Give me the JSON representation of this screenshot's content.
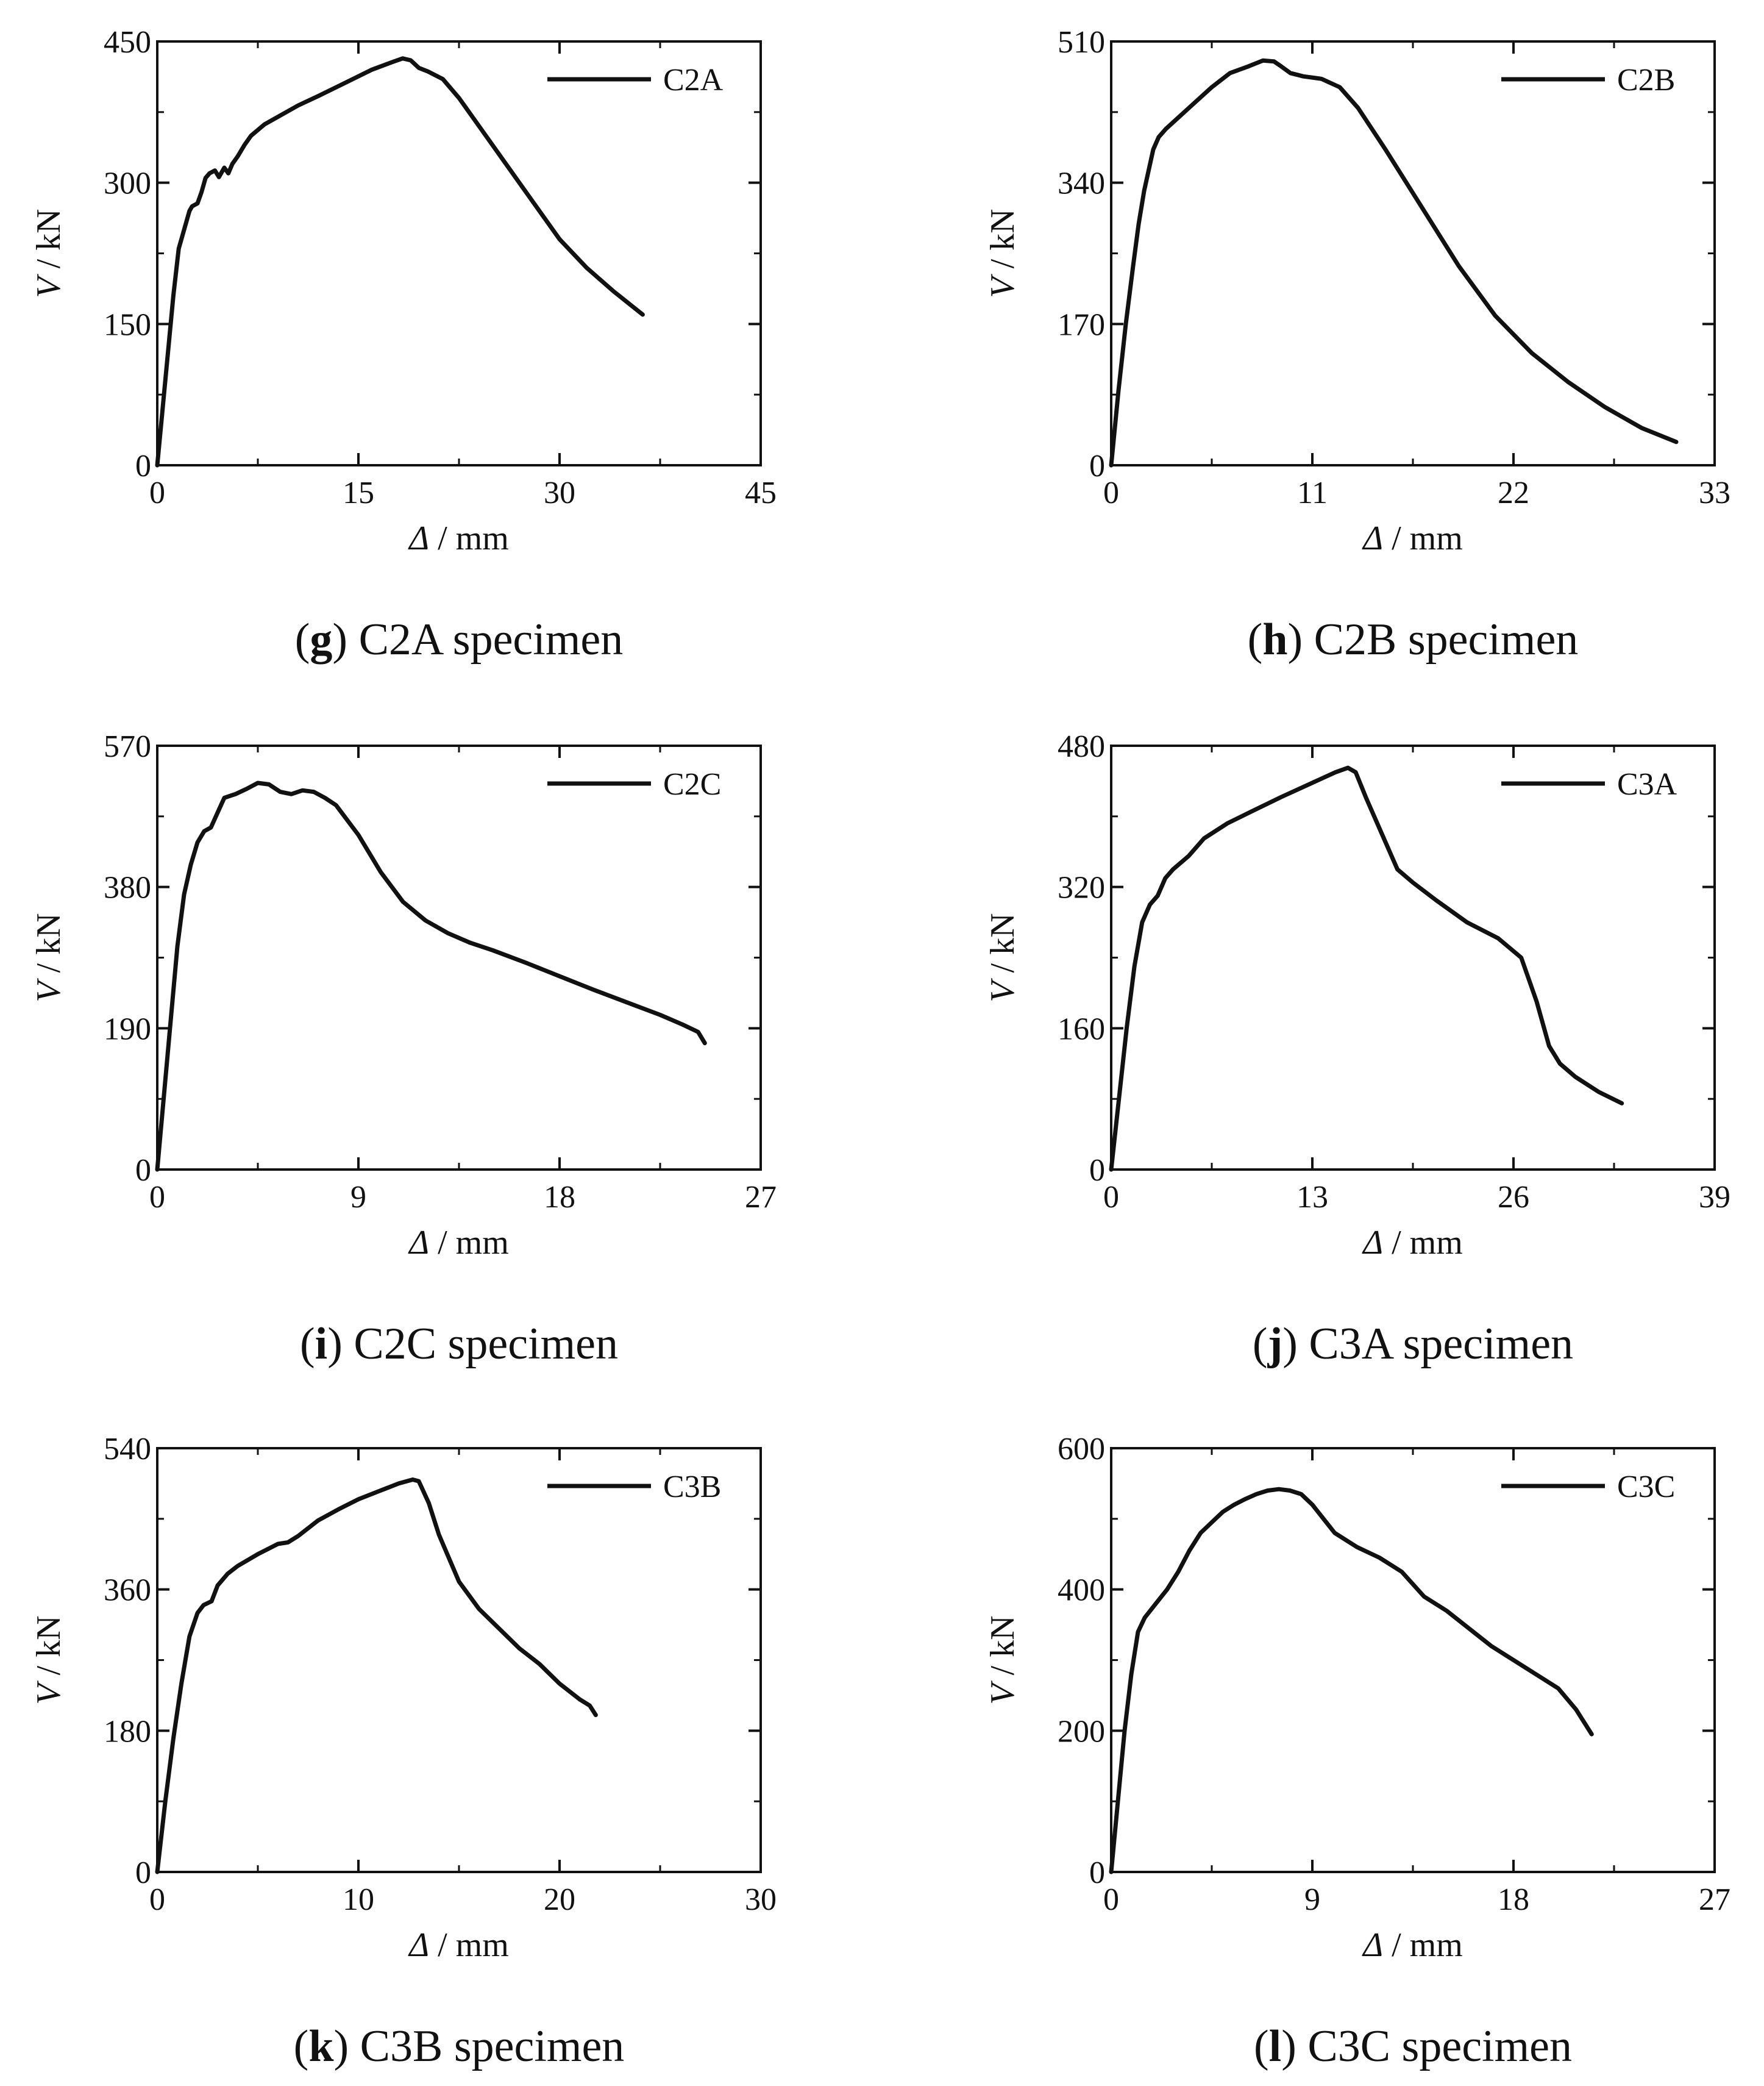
{
  "figure": {
    "panels": [
      {
        "letter": "g",
        "caption_rest": " C2A specimen",
        "chart_data": {
          "type": "line",
          "series_name": "C2A",
          "xlabel_symbol": "Δ",
          "xlabel_unit": " / mm",
          "ylabel_symbol": "V",
          "ylabel_unit": " / kN",
          "xlim": [
            0,
            45
          ],
          "ylim": [
            0,
            450
          ],
          "xticks": [
            0,
            15,
            30,
            45
          ],
          "yticks": [
            0,
            150,
            300,
            450
          ],
          "x": [
            0,
            0.4,
            0.8,
            1.2,
            1.6,
            2.0,
            2.4,
            2.6,
            3.0,
            3.3,
            3.6,
            3.9,
            4.3,
            4.6,
            5.0,
            5.3,
            5.6,
            6.0,
            6.5,
            7.0,
            8.0,
            9.0,
            10.5,
            12.0,
            14.0,
            16.0,
            17.5,
            18.3,
            18.9,
            19.5,
            20.2,
            21.3,
            22.5,
            24.0,
            26.0,
            28.0,
            30.0,
            32.0,
            34.0,
            36.2
          ],
          "y": [
            0,
            60,
            120,
            180,
            230,
            250,
            270,
            275,
            278,
            290,
            305,
            310,
            313,
            306,
            316,
            310,
            320,
            328,
            340,
            350,
            362,
            370,
            382,
            392,
            406,
            420,
            428,
            432,
            430,
            422,
            418,
            410,
            390,
            360,
            320,
            280,
            240,
            210,
            185,
            160
          ]
        }
      },
      {
        "letter": "h",
        "caption_rest": " C2B specimen",
        "chart_data": {
          "type": "line",
          "series_name": "C2B",
          "xlabel_symbol": "Δ",
          "xlabel_unit": " / mm",
          "ylabel_symbol": "V",
          "ylabel_unit": " / kN",
          "xlim": [
            0,
            33
          ],
          "ylim": [
            0,
            510
          ],
          "xticks": [
            0,
            11,
            22,
            33
          ],
          "yticks": [
            0,
            170,
            340,
            510
          ],
          "x": [
            0,
            0.4,
            0.8,
            1.2,
            1.5,
            1.8,
            2.1,
            2.3,
            2.6,
            3.0,
            3.5,
            4.5,
            5.5,
            6.5,
            7.5,
            8.3,
            8.9,
            9.3,
            9.8,
            10.5,
            11.5,
            12.5,
            13.5,
            15.0,
            17.0,
            19.0,
            21.0,
            23.0,
            25.0,
            27.0,
            29.0,
            30.9
          ],
          "y": [
            0,
            90,
            170,
            240,
            290,
            330,
            360,
            380,
            395,
            405,
            415,
            435,
            455,
            472,
            480,
            487,
            486,
            480,
            472,
            468,
            465,
            455,
            430,
            380,
            310,
            240,
            180,
            135,
            100,
            70,
            45,
            28
          ]
        }
      },
      {
        "letter": "i",
        "caption_rest": " C2C specimen",
        "chart_data": {
          "type": "line",
          "series_name": "C2C",
          "xlabel_symbol": "Δ",
          "xlabel_unit": " / mm",
          "ylabel_symbol": "V",
          "ylabel_unit": " / kN",
          "xlim": [
            0,
            27
          ],
          "ylim": [
            0,
            570
          ],
          "xticks": [
            0,
            9,
            18,
            27
          ],
          "yticks": [
            0,
            190,
            380,
            570
          ],
          "x": [
            0,
            0.3,
            0.6,
            0.9,
            1.2,
            1.5,
            1.8,
            2.1,
            2.4,
            2.7,
            3.0,
            3.5,
            4.0,
            4.5,
            5.0,
            5.5,
            6.0,
            6.5,
            7.0,
            7.5,
            8.0,
            9.0,
            10.0,
            11.0,
            12.0,
            13.0,
            14.0,
            15.0,
            16.5,
            18.0,
            19.5,
            21.0,
            22.5,
            23.5,
            24.2,
            24.5
          ],
          "y": [
            0,
            100,
            200,
            300,
            370,
            410,
            440,
            455,
            460,
            480,
            500,
            505,
            512,
            520,
            518,
            508,
            505,
            510,
            508,
            500,
            490,
            450,
            400,
            360,
            335,
            318,
            305,
            295,
            278,
            260,
            242,
            225,
            208,
            195,
            185,
            170
          ]
        }
      },
      {
        "letter": "j",
        "caption_rest": " C3A specimen",
        "chart_data": {
          "type": "line",
          "series_name": "C3A",
          "xlabel_symbol": "Δ",
          "xlabel_unit": " / mm",
          "ylabel_symbol": "V",
          "ylabel_unit": " / kN",
          "xlim": [
            0,
            39
          ],
          "ylim": [
            0,
            480
          ],
          "xticks": [
            0,
            13,
            26,
            39
          ],
          "yticks": [
            0,
            160,
            320,
            480
          ],
          "x": [
            0,
            0.5,
            1.0,
            1.5,
            2.0,
            2.5,
            3.0,
            3.5,
            4.0,
            5.0,
            6.0,
            7.5,
            9.0,
            11.0,
            13.0,
            14.5,
            15.3,
            15.8,
            16.5,
            17.5,
            18.5,
            19.5,
            21.0,
            23.0,
            25.0,
            26.5,
            27.5,
            28.3,
            29.0,
            30.0,
            31.5,
            33.0
          ],
          "y": [
            0,
            80,
            160,
            230,
            280,
            300,
            310,
            330,
            340,
            355,
            375,
            392,
            405,
            422,
            438,
            450,
            455,
            450,
            420,
            380,
            340,
            325,
            305,
            280,
            262,
            240,
            190,
            140,
            120,
            105,
            88,
            75
          ]
        }
      },
      {
        "letter": "k",
        "caption_rest": " C3B specimen",
        "chart_data": {
          "type": "line",
          "series_name": "C3B",
          "xlabel_symbol": "Δ",
          "xlabel_unit": " / mm",
          "ylabel_symbol": "V",
          "ylabel_unit": " / kN",
          "xlim": [
            0,
            30
          ],
          "ylim": [
            0,
            540
          ],
          "xticks": [
            0,
            10,
            20,
            30
          ],
          "yticks": [
            0,
            180,
            360,
            540
          ],
          "x": [
            0,
            0.4,
            0.8,
            1.2,
            1.6,
            2.0,
            2.3,
            2.7,
            3.0,
            3.5,
            4.0,
            5.0,
            6.0,
            6.5,
            7.0,
            8.0,
            9.0,
            10.0,
            11.0,
            12.0,
            12.7,
            13.0,
            13.5,
            14.0,
            15.0,
            16.0,
            17.0,
            18.0,
            19.0,
            20.0,
            21.0,
            21.5,
            21.8
          ],
          "y": [
            0,
            90,
            170,
            240,
            300,
            330,
            340,
            345,
            365,
            380,
            390,
            405,
            418,
            420,
            428,
            448,
            462,
            475,
            485,
            495,
            500,
            498,
            470,
            430,
            370,
            335,
            310,
            285,
            265,
            240,
            220,
            212,
            200
          ]
        }
      },
      {
        "letter": "l",
        "caption_rest": " C3C specimen",
        "chart_data": {
          "type": "line",
          "series_name": "C3C",
          "xlabel_symbol": "Δ",
          "xlabel_unit": " / mm",
          "ylabel_symbol": "V",
          "ylabel_unit": " / kN",
          "xlim": [
            0,
            27
          ],
          "ylim": [
            0,
            600
          ],
          "xticks": [
            0,
            9,
            18,
            27
          ],
          "yticks": [
            0,
            200,
            400,
            600
          ],
          "x": [
            0,
            0.3,
            0.6,
            0.9,
            1.2,
            1.5,
            2.0,
            2.5,
            3.0,
            3.5,
            4.0,
            4.5,
            5.0,
            5.5,
            6.0,
            6.5,
            7.0,
            7.5,
            8.0,
            8.5,
            9.0,
            9.5,
            10.0,
            11.0,
            12.0,
            13.0,
            14.0,
            15.0,
            16.0,
            17.0,
            18.0,
            19.0,
            20.0,
            20.8,
            21.5
          ],
          "y": [
            0,
            100,
            200,
            280,
            340,
            360,
            380,
            400,
            425,
            455,
            480,
            495,
            510,
            520,
            528,
            535,
            540,
            542,
            540,
            535,
            520,
            500,
            480,
            460,
            445,
            425,
            390,
            370,
            345,
            320,
            300,
            280,
            260,
            230,
            195
          ]
        }
      }
    ]
  }
}
